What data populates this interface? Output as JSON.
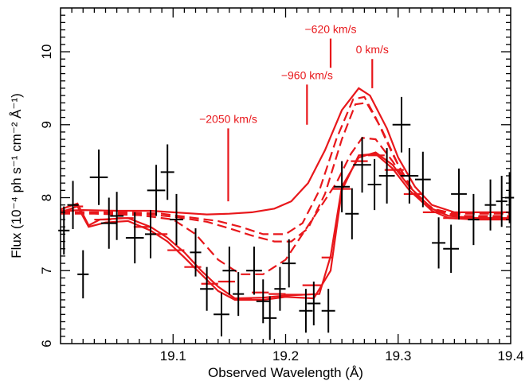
{
  "chart_data": {
    "type": "scatter",
    "xlabel": "Observed Wavelength (Å)",
    "ylabel": "Flux (10⁻⁴ ph s⁻¹ cm⁻² Å⁻¹)",
    "xlim": [
      19.0,
      19.4
    ],
    "ylim": [
      6,
      10.6
    ],
    "x_ticks": [
      "19.1",
      "19.2",
      "19.3",
      "19.4"
    ],
    "x_tick_values": [
      19.1,
      19.2,
      19.3,
      19.4
    ],
    "y_ticks": [
      "6",
      "7",
      "8",
      "9",
      "10"
    ],
    "y_tick_values": [
      6,
      7,
      8,
      9,
      10
    ],
    "colors": {
      "data": "#000000",
      "model": "#e8171b"
    },
    "data_points": [
      {
        "x": 19.003,
        "xerr": 0.005,
        "y": 7.55,
        "yerr": 0.33
      },
      {
        "x": 19.011,
        "xerr": 0.005,
        "y": 7.9,
        "yerr": 0.33
      },
      {
        "x": 19.02,
        "xerr": 0.005,
        "y": 6.95,
        "yerr": 0.33
      },
      {
        "x": 19.034,
        "xerr": 0.008,
        "y": 8.28,
        "yerr": 0.38
      },
      {
        "x": 19.043,
        "xerr": 0.007,
        "y": 7.65,
        "yerr": 0.35
      },
      {
        "x": 19.05,
        "xerr": 0.006,
        "y": 7.75,
        "yerr": 0.33
      },
      {
        "x": 19.066,
        "xerr": 0.008,
        "y": 7.45,
        "yerr": 0.35
      },
      {
        "x": 19.08,
        "xerr": 0.005,
        "y": 7.5,
        "yerr": 0.33
      },
      {
        "x": 19.085,
        "xerr": 0.008,
        "y": 8.1,
        "yerr": 0.35
      },
      {
        "x": 19.095,
        "xerr": 0.006,
        "y": 8.35,
        "yerr": 0.38
      },
      {
        "x": 19.103,
        "xerr": 0.006,
        "y": 7.7,
        "yerr": 0.35
      },
      {
        "x": 19.12,
        "xerr": 0.005,
        "y": 7.25,
        "yerr": 0.33
      },
      {
        "x": 19.13,
        "xerr": 0.006,
        "y": 6.75,
        "yerr": 0.3
      },
      {
        "x": 19.143,
        "xerr": 0.007,
        "y": 6.4,
        "yerr": 0.3
      },
      {
        "x": 19.15,
        "xerr": 0.006,
        "y": 7.0,
        "yerr": 0.33
      },
      {
        "x": 19.158,
        "xerr": 0.005,
        "y": 6.68,
        "yerr": 0.3
      },
      {
        "x": 19.172,
        "xerr": 0.007,
        "y": 7.0,
        "yerr": 0.33
      },
      {
        "x": 19.18,
        "xerr": 0.006,
        "y": 6.58,
        "yerr": 0.3
      },
      {
        "x": 19.186,
        "xerr": 0.006,
        "y": 6.35,
        "yerr": 0.3
      },
      {
        "x": 19.195,
        "xerr": 0.005,
        "y": 6.75,
        "yerr": 0.3
      },
      {
        "x": 19.203,
        "xerr": 0.006,
        "y": 7.1,
        "yerr": 0.33
      },
      {
        "x": 19.218,
        "xerr": 0.006,
        "y": 6.45,
        "yerr": 0.3
      },
      {
        "x": 19.225,
        "xerr": 0.006,
        "y": 6.55,
        "yerr": 0.3
      },
      {
        "x": 19.238,
        "xerr": 0.006,
        "y": 6.45,
        "yerr": 0.3
      },
      {
        "x": 19.25,
        "xerr": 0.007,
        "y": 8.15,
        "yerr": 0.35
      },
      {
        "x": 19.259,
        "xerr": 0.006,
        "y": 7.78,
        "yerr": 0.35
      },
      {
        "x": 19.268,
        "xerr": 0.008,
        "y": 8.45,
        "yerr": 0.38
      },
      {
        "x": 19.279,
        "xerr": 0.006,
        "y": 8.18,
        "yerr": 0.35
      },
      {
        "x": 19.29,
        "xerr": 0.007,
        "y": 8.3,
        "yerr": 0.38
      },
      {
        "x": 19.303,
        "xerr": 0.008,
        "y": 9.0,
        "yerr": 0.38
      },
      {
        "x": 19.31,
        "xerr": 0.008,
        "y": 8.3,
        "yerr": 0.38
      },
      {
        "x": 19.322,
        "xerr": 0.007,
        "y": 8.25,
        "yerr": 0.38
      },
      {
        "x": 19.336,
        "xerr": 0.006,
        "y": 7.38,
        "yerr": 0.35
      },
      {
        "x": 19.347,
        "xerr": 0.007,
        "y": 7.3,
        "yerr": 0.33
      },
      {
        "x": 19.354,
        "xerr": 0.007,
        "y": 8.05,
        "yerr": 0.35
      },
      {
        "x": 19.367,
        "xerr": 0.005,
        "y": 7.7,
        "yerr": 0.35
      },
      {
        "x": 19.382,
        "xerr": 0.005,
        "y": 7.9,
        "yerr": 0.35
      },
      {
        "x": 19.392,
        "xerr": 0.005,
        "y": 7.95,
        "yerr": 0.35
      },
      {
        "x": 19.399,
        "xerr": 0.004,
        "y": 8.0,
        "yerr": 0.35
      }
    ],
    "model_curves": [
      {
        "style": "solid",
        "points": [
          [
            19.0,
            7.82
          ],
          [
            19.02,
            7.83
          ],
          [
            19.05,
            7.82
          ],
          [
            19.08,
            7.82
          ],
          [
            19.1,
            7.8
          ],
          [
            19.13,
            7.77
          ],
          [
            19.15,
            7.78
          ],
          [
            19.17,
            7.8
          ],
          [
            19.19,
            7.85
          ],
          [
            19.205,
            7.95
          ],
          [
            19.22,
            8.2
          ],
          [
            19.235,
            8.65
          ],
          [
            19.25,
            9.2
          ],
          [
            19.265,
            9.5
          ],
          [
            19.275,
            9.4
          ],
          [
            19.29,
            8.95
          ],
          [
            19.3,
            8.55
          ],
          [
            19.315,
            8.15
          ],
          [
            19.33,
            7.9
          ],
          [
            19.35,
            7.8
          ],
          [
            19.4,
            7.8
          ]
        ]
      },
      {
        "style": "dashed",
        "points": [
          [
            19.0,
            7.8
          ],
          [
            19.03,
            7.8
          ],
          [
            19.06,
            7.8
          ],
          [
            19.09,
            7.78
          ],
          [
            19.11,
            7.74
          ],
          [
            19.14,
            7.68
          ],
          [
            19.16,
            7.6
          ],
          [
            19.18,
            7.5
          ],
          [
            19.2,
            7.5
          ],
          [
            19.215,
            7.65
          ],
          [
            19.23,
            8.1
          ],
          [
            19.245,
            8.8
          ],
          [
            19.26,
            9.35
          ],
          [
            19.27,
            9.38
          ],
          [
            19.28,
            9.1
          ],
          [
            19.295,
            8.6
          ],
          [
            19.31,
            8.15
          ],
          [
            19.33,
            7.85
          ],
          [
            19.35,
            7.78
          ],
          [
            19.4,
            7.78
          ]
        ]
      },
      {
        "style": "dashed",
        "points": [
          [
            19.0,
            7.79
          ],
          [
            19.03,
            7.79
          ],
          [
            19.07,
            7.78
          ],
          [
            19.1,
            7.74
          ],
          [
            19.13,
            7.67
          ],
          [
            19.15,
            7.58
          ],
          [
            19.17,
            7.48
          ],
          [
            19.19,
            7.4
          ],
          [
            19.205,
            7.4
          ],
          [
            19.22,
            7.58
          ],
          [
            19.235,
            8.05
          ],
          [
            19.25,
            8.8
          ],
          [
            19.262,
            9.28
          ],
          [
            19.272,
            9.3
          ],
          [
            19.285,
            8.95
          ],
          [
            19.3,
            8.45
          ],
          [
            19.315,
            8.05
          ],
          [
            19.335,
            7.8
          ],
          [
            19.36,
            7.75
          ],
          [
            19.4,
            7.75
          ]
        ]
      },
      {
        "style": "dashed",
        "points": [
          [
            19.0,
            7.78
          ],
          [
            19.03,
            7.78
          ],
          [
            19.07,
            7.76
          ],
          [
            19.1,
            7.7
          ],
          [
            19.12,
            7.5
          ],
          [
            19.14,
            7.15
          ],
          [
            19.16,
            6.95
          ],
          [
            19.18,
            6.95
          ],
          [
            19.2,
            7.15
          ],
          [
            19.215,
            7.5
          ],
          [
            19.23,
            7.85
          ],
          [
            19.245,
            8.2
          ],
          [
            19.258,
            8.6
          ],
          [
            19.268,
            8.82
          ],
          [
            19.28,
            8.8
          ],
          [
            19.295,
            8.5
          ],
          [
            19.31,
            8.15
          ],
          [
            19.33,
            7.85
          ],
          [
            19.355,
            7.73
          ],
          [
            19.4,
            7.73
          ]
        ]
      },
      {
        "style": "solid",
        "points": [
          [
            19.0,
            7.84
          ],
          [
            19.015,
            7.92
          ],
          [
            19.025,
            7.62
          ],
          [
            19.035,
            7.7
          ],
          [
            19.06,
            7.72
          ],
          [
            19.08,
            7.6
          ],
          [
            19.095,
            7.45
          ],
          [
            19.11,
            7.25
          ],
          [
            19.125,
            7.0
          ],
          [
            19.14,
            6.78
          ],
          [
            19.155,
            6.62
          ],
          [
            19.18,
            6.63
          ],
          [
            19.2,
            6.66
          ],
          [
            19.23,
            6.68
          ],
          [
            19.24,
            7.2
          ],
          [
            19.25,
            8.15
          ],
          [
            19.265,
            8.55
          ],
          [
            19.28,
            8.62
          ],
          [
            19.295,
            8.45
          ],
          [
            19.31,
            8.15
          ],
          [
            19.33,
            7.85
          ],
          [
            19.345,
            7.75
          ],
          [
            19.37,
            7.72
          ],
          [
            19.4,
            7.72
          ]
        ]
      },
      {
        "style": "solid",
        "points": [
          [
            19.0,
            7.8
          ],
          [
            19.015,
            7.88
          ],
          [
            19.025,
            7.6
          ],
          [
            19.04,
            7.66
          ],
          [
            19.06,
            7.68
          ],
          [
            19.08,
            7.55
          ],
          [
            19.095,
            7.4
          ],
          [
            19.11,
            7.18
          ],
          [
            19.125,
            6.95
          ],
          [
            19.14,
            6.72
          ],
          [
            19.155,
            6.6
          ],
          [
            19.18,
            6.6
          ],
          [
            19.2,
            6.64
          ],
          [
            19.225,
            6.62
          ],
          [
            19.24,
            7.0
          ],
          [
            19.25,
            8.1
          ],
          [
            19.265,
            8.58
          ],
          [
            19.28,
            8.6
          ],
          [
            19.295,
            8.4
          ],
          [
            19.31,
            8.1
          ],
          [
            19.33,
            7.82
          ],
          [
            19.345,
            7.72
          ],
          [
            19.37,
            7.7
          ],
          [
            19.4,
            7.7
          ]
        ]
      }
    ],
    "model_bins": [
      {
        "x0": 19.0,
        "x1": 19.012,
        "y": 7.82
      },
      {
        "x0": 19.012,
        "x1": 19.02,
        "y": 7.88
      },
      {
        "x0": 19.03,
        "x1": 19.045,
        "y": 7.7
      },
      {
        "x0": 19.05,
        "x1": 19.065,
        "y": 7.72
      },
      {
        "x0": 19.065,
        "x1": 19.08,
        "y": 7.6
      },
      {
        "x0": 19.08,
        "x1": 19.095,
        "y": 7.5
      },
      {
        "x0": 19.095,
        "x1": 19.11,
        "y": 7.28
      },
      {
        "x0": 19.11,
        "x1": 19.125,
        "y": 7.05
      },
      {
        "x0": 19.125,
        "x1": 19.14,
        "y": 6.82
      },
      {
        "x0": 19.14,
        "x1": 19.155,
        "y": 6.85
      },
      {
        "x0": 19.155,
        "x1": 19.17,
        "y": 6.62
      },
      {
        "x0": 19.17,
        "x1": 19.185,
        "y": 6.7
      },
      {
        "x0": 19.185,
        "x1": 19.2,
        "y": 6.68
      },
      {
        "x0": 19.2,
        "x1": 19.215,
        "y": 6.67
      },
      {
        "x0": 19.215,
        "x1": 19.232,
        "y": 6.8
      },
      {
        "x0": 19.232,
        "x1": 19.242,
        "y": 7.18
      },
      {
        "x0": 19.242,
        "x1": 19.258,
        "y": 8.12
      },
      {
        "x0": 19.258,
        "x1": 19.273,
        "y": 8.5
      },
      {
        "x0": 19.273,
        "x1": 19.288,
        "y": 8.58
      },
      {
        "x0": 19.288,
        "x1": 19.305,
        "y": 8.38
      },
      {
        "x0": 19.305,
        "x1": 19.322,
        "y": 8.05
      },
      {
        "x0": 19.322,
        "x1": 19.34,
        "y": 7.8
      },
      {
        "x0": 19.34,
        "x1": 19.36,
        "y": 7.72
      },
      {
        "x0": 19.36,
        "x1": 19.38,
        "y": 7.72
      },
      {
        "x0": 19.38,
        "x1": 19.4,
        "y": 7.72
      }
    ],
    "annotations": [
      {
        "label": "−2050 km/s",
        "x": 19.149,
        "y_top": 8.95,
        "y_bottom": 7.95
      },
      {
        "label": "−960 km/s",
        "x": 19.219,
        "y_top": 9.55,
        "y_bottom": 9.0
      },
      {
        "label": "−620 km/s",
        "x": 19.24,
        "y_top": 10.18,
        "y_bottom": 9.78
      },
      {
        "label": "0 km/s",
        "x": 19.277,
        "y_top": 9.9,
        "y_bottom": 9.5
      }
    ]
  }
}
